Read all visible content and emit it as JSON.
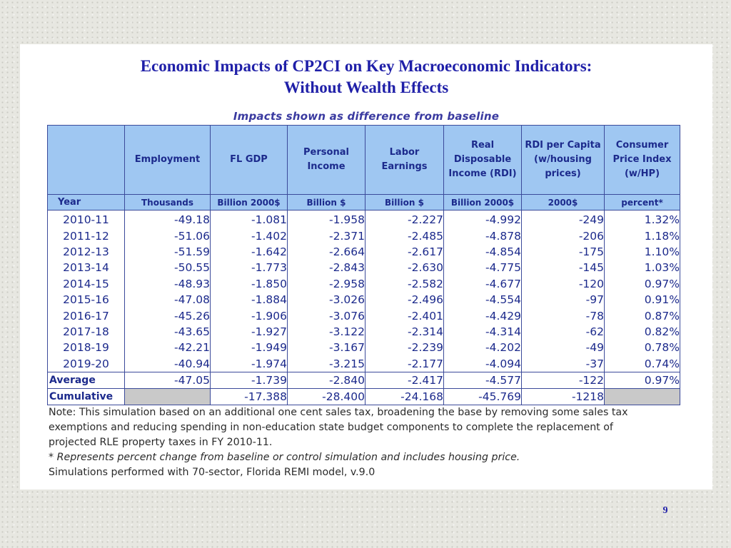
{
  "slide": {
    "title_line1": "Economic Impacts of CP2CI on Key Macroeconomic Indicators:",
    "title_line2": "Without Wealth Effects",
    "table_caption": "Impacts shown as difference from baseline",
    "page_number": "9"
  },
  "table": {
    "columns": [
      {
        "header": "",
        "unit": "Year"
      },
      {
        "header": "Employment",
        "unit": "Thousands"
      },
      {
        "header": "FL GDP",
        "unit": "Billion 2000$"
      },
      {
        "header": "Personal Income",
        "unit": "Billion $"
      },
      {
        "header": "Labor Earnings",
        "unit": "Billion $"
      },
      {
        "header": "Real Disposable Income (RDI)",
        "unit": "Billion 2000$"
      },
      {
        "header": "RDI per Capita (w/housing prices)",
        "unit": "2000$"
      },
      {
        "header": "Consumer Price Index (w/HP)",
        "unit": "percent*"
      }
    ],
    "rows": [
      [
        "2010-11",
        "-49.18",
        "-1.081",
        "-1.958",
        "-2.227",
        "-4.992",
        "-249",
        "1.32%"
      ],
      [
        "2011-12",
        "-51.06",
        "-1.402",
        "-2.371",
        "-2.485",
        "-4.878",
        "-206",
        "1.18%"
      ],
      [
        "2012-13",
        "-51.59",
        "-1.642",
        "-2.664",
        "-2.617",
        "-4.854",
        "-175",
        "1.10%"
      ],
      [
        "2013-14",
        "-50.55",
        "-1.773",
        "-2.843",
        "-2.630",
        "-4.775",
        "-145",
        "1.03%"
      ],
      [
        "2014-15",
        "-48.93",
        "-1.850",
        "-2.958",
        "-2.582",
        "-4.677",
        "-120",
        "0.97%"
      ],
      [
        "2015-16",
        "-47.08",
        "-1.884",
        "-3.026",
        "-2.496",
        "-4.554",
        "-97",
        "0.91%"
      ],
      [
        "2016-17",
        "-45.26",
        "-1.906",
        "-3.076",
        "-2.401",
        "-4.429",
        "-78",
        "0.87%"
      ],
      [
        "2017-18",
        "-43.65",
        "-1.927",
        "-3.122",
        "-2.314",
        "-4.314",
        "-62",
        "0.82%"
      ],
      [
        "2018-19",
        "-42.21",
        "-1.949",
        "-3.167",
        "-2.239",
        "-4.202",
        "-49",
        "0.78%"
      ],
      [
        "2019-20",
        "-40.94",
        "-1.974",
        "-3.215",
        "-2.177",
        "-4.094",
        "-37",
        "0.74%"
      ]
    ],
    "average": [
      "Average",
      "-47.05",
      "-1.739",
      "-2.840",
      "-2.417",
      "-4.577",
      "-122",
      "0.97%"
    ],
    "cumulative": [
      "Cumulative",
      "",
      "-17.388",
      "-28.400",
      "-24.168",
      "-45.769",
      "-1218",
      ""
    ]
  },
  "notes": {
    "line1": "Note: This simulation based on an additional one cent sales tax, broadening the base by removing some sales tax",
    "line2": "exemptions and reducing spending in non-education state budget components to complete the replacement of",
    "line3": "projected RLE property taxes in FY 2010-11.",
    "line4": "* Represents percent change from baseline or control simulation and includes housing price.",
    "line5": "Simulations performed with 70-sector, Florida REMI model, v.9.0"
  },
  "colors": {
    "title": "#1f1fa8",
    "header_fill": "#9fc7f2",
    "table_text": "#1c2a8c",
    "blank_cell": "#c9c9c9"
  }
}
